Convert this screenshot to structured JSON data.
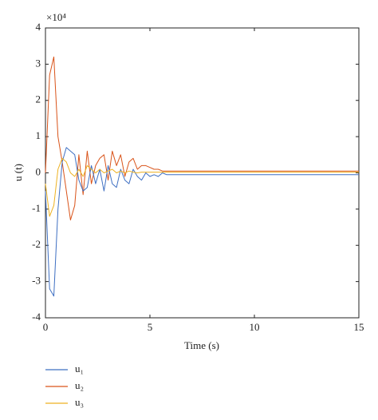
{
  "chart_data": {
    "type": "line",
    "x_label": "Time (s)",
    "y_label": "u (t)",
    "y_exponent": "×10⁴",
    "x": [
      0,
      0.2,
      0.4,
      0.6,
      0.8,
      1.0,
      1.2,
      1.4,
      1.6,
      1.8,
      2.0,
      2.2,
      2.4,
      2.6,
      2.8,
      3.0,
      3.2,
      3.4,
      3.6,
      3.8,
      4.0,
      4.2,
      4.4,
      4.6,
      4.8,
      5.0,
      5.2,
      5.4,
      5.6,
      5.8,
      6.0,
      7,
      8,
      9,
      10,
      11,
      12,
      13,
      14,
      15
    ],
    "series": [
      {
        "name": "u₁",
        "color": "#3e6fc2",
        "values": [
          -0.5,
          -3.2,
          -3.4,
          -1.0,
          0.3,
          0.7,
          0.6,
          0.5,
          -0.2,
          -0.5,
          -0.4,
          0.2,
          -0.3,
          0.1,
          -0.5,
          0.2,
          -0.3,
          -0.4,
          0.1,
          -0.2,
          -0.3,
          0.1,
          -0.1,
          -0.2,
          0.0,
          -0.1,
          -0.05,
          -0.1,
          0.0,
          -0.05,
          -0.05,
          -0.05,
          -0.05,
          -0.05,
          -0.05,
          -0.05,
          -0.05,
          -0.05,
          -0.05,
          -0.05
        ]
      },
      {
        "name": "u₂",
        "color": "#d95319",
        "values": [
          0,
          2.7,
          3.2,
          1.0,
          0.3,
          -0.5,
          -1.3,
          -0.9,
          0.5,
          -0.6,
          0.6,
          -0.3,
          0.2,
          0.4,
          0.5,
          -0.2,
          0.6,
          0.2,
          0.5,
          -0.1,
          0.3,
          0.4,
          0.1,
          0.2,
          0.2,
          0.15,
          0.1,
          0.1,
          0.05,
          0.05,
          0.05,
          0.05,
          0.05,
          0.05,
          0.05,
          0.05,
          0.05,
          0.05,
          0.05,
          0.05
        ]
      },
      {
        "name": "u₃",
        "color": "#edb120",
        "values": [
          -0.3,
          -1.2,
          -0.9,
          0.1,
          0.4,
          0.3,
          0.0,
          -0.1,
          0.1,
          -0.1,
          0.2,
          0.1,
          0.0,
          0.1,
          0.0,
          0.05,
          0.1,
          0.0,
          0.05,
          0.0,
          0.05,
          0.02,
          0.0,
          0.02,
          0.02,
          0.02,
          0.02,
          0.02,
          0.02,
          0.02,
          0.02,
          0.02,
          0.02,
          0.02,
          0.02,
          0.02,
          0.02,
          0.02,
          0.02,
          0.02
        ]
      }
    ],
    "xlim": [
      0,
      15
    ],
    "xticks": [
      0,
      5,
      10,
      15
    ],
    "ylim": [
      -4,
      4
    ],
    "yticks": [
      -4,
      -3,
      -2,
      -1,
      0,
      1,
      2,
      3,
      4
    ],
    "legend": "bottom-left"
  }
}
